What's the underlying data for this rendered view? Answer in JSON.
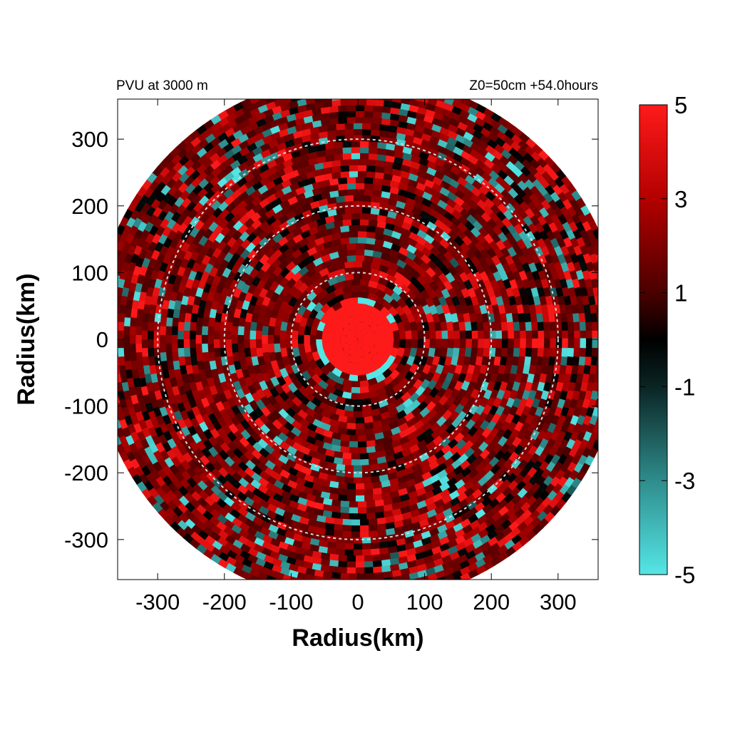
{
  "chart_data": {
    "type": "heatmap",
    "title_left": "PVU at  3000 m",
    "title_right": "Z0=50cm  +54.0hours",
    "xlabel": "Radius(km)",
    "ylabel": "Radius(km)",
    "xlim": [
      -360,
      360
    ],
    "ylim": [
      -360,
      360
    ],
    "x_ticks": [
      -300,
      -200,
      -100,
      0,
      100,
      200,
      300
    ],
    "y_ticks": [
      300,
      200,
      100,
      0,
      -100,
      -200,
      -300
    ],
    "x_tick_labels": [
      "-300",
      "-200",
      "-100",
      "0",
      "100",
      "200",
      "300"
    ],
    "y_tick_labels": [
      "300",
      "200",
      "100",
      "0",
      "-100",
      "-200",
      "-300"
    ],
    "domain_radius_km": 390,
    "range_rings_km": [
      100,
      200,
      300
    ],
    "core_max_radius_km": 55,
    "colorbar": {
      "min": -5,
      "max": 5,
      "ticks": [
        5,
        3,
        1,
        -1,
        -3,
        -5
      ],
      "tick_labels": [
        "5",
        "3",
        "1",
        "-1",
        "-3",
        "-5"
      ],
      "stops": [
        {
          "value": 5,
          "color": "#ff1a1a"
        },
        {
          "value": 3,
          "color": "#b40000"
        },
        {
          "value": 1,
          "color": "#4a0000"
        },
        {
          "value": 0,
          "color": "#000000"
        },
        {
          "value": -1,
          "color": "#0b2424"
        },
        {
          "value": -3,
          "color": "#2f8c8c"
        },
        {
          "value": -5,
          "color": "#55e6e6"
        }
      ]
    },
    "grid": false,
    "legend": "colorbar-right"
  }
}
